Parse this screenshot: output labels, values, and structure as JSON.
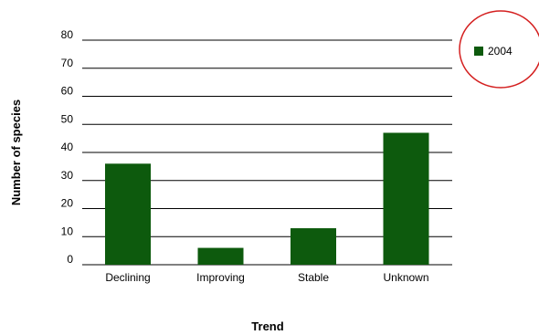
{
  "chart_data": {
    "type": "bar",
    "title": "",
    "xlabel": "Trend",
    "ylabel": "Number of species",
    "categories": [
      "Declining",
      "Improving",
      "Stable",
      "Unknown"
    ],
    "series": [
      {
        "name": "2004",
        "values": [
          36,
          6,
          13,
          47
        ],
        "color": "#0d5a0d"
      }
    ],
    "ylim": [
      0,
      80
    ],
    "yticks": [
      0,
      10,
      20,
      30,
      40,
      50,
      60,
      70,
      80
    ],
    "grid": true,
    "legend": "top-right",
    "annotation": {
      "shape": "circle",
      "around": "legend",
      "color": "#d42020"
    }
  }
}
